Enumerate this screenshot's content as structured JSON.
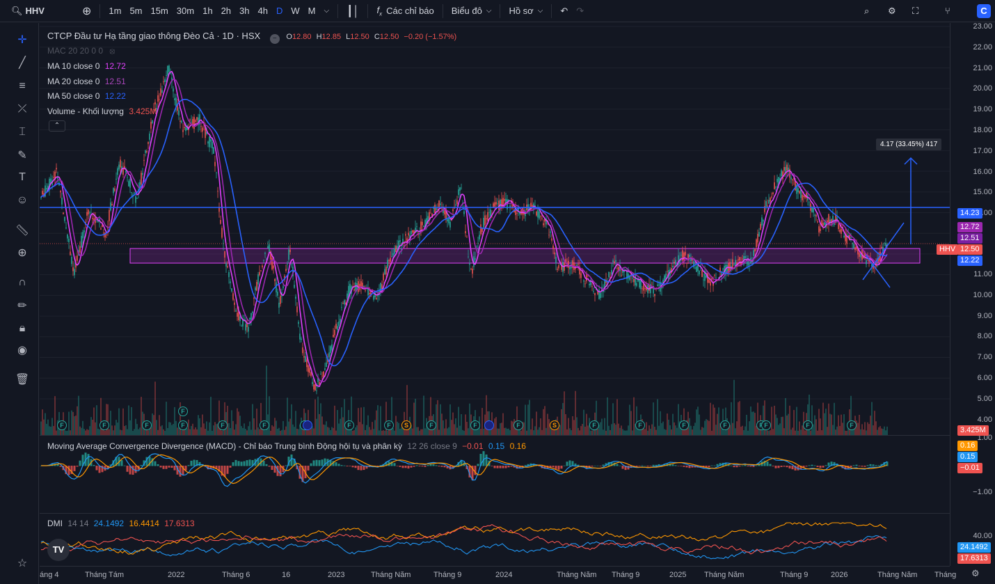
{
  "topbar": {
    "symbol": "HHV",
    "intervals": [
      "1m",
      "5m",
      "15m",
      "30m",
      "1h",
      "2h",
      "3h",
      "4h",
      "D",
      "W",
      "M"
    ],
    "active_interval": "D",
    "indicators_label": "Các chỉ báo",
    "chart_type_label": "Biểu đô",
    "profile_label": "Hồ sơ"
  },
  "legend": {
    "title": "CTCP Đầu tư Hạ tầng giao thông Đèo Cả · 1D · HSX",
    "ohlc": {
      "o_label": "O",
      "o": "12.80",
      "h_label": "H",
      "h": "12.85",
      "l_label": "L",
      "l": "12.50",
      "c_label": "C",
      "c": "12.50",
      "chg": "−0.20 (−1.57%)"
    },
    "mac": "MAC 20 20 0 0",
    "ma10_label": "MA 10 close 0",
    "ma10": "12.72",
    "ma20_label": "MA 20 close 0",
    "ma20": "12.51",
    "ma50_label": "MA 50 close 0",
    "ma50": "12.22",
    "volume_label": "Volume - Khối lượng",
    "volume": "3.425M"
  },
  "macd": {
    "label": "Moving Average Convergence Divergence (MACD) - Chỉ báo Trung bình Động hội tụ và phân kỳ",
    "params": "12 26 close 9",
    "v1": "−0.01",
    "v2": "0.15",
    "v3": "0.16"
  },
  "dmi": {
    "label": "DMI",
    "params": "14 14",
    "v1": "24.1492",
    "v2": "16.4414",
    "v3": "17.6313"
  },
  "price_axis": [
    "23.00",
    "22.00",
    "21.00",
    "20.00",
    "19.00",
    "18.00",
    "17.00",
    "16.00",
    "15.00",
    "14.00",
    "11.00",
    "10.00",
    "9.00",
    "8.00",
    "7.00",
    "6.00",
    "5.00",
    "4.00",
    "1.00"
  ],
  "price_badges": {
    "level": "14.23",
    "ma10": "12.72",
    "ma20": "12.51",
    "symbol": "HHV",
    "close": "12.50",
    "ma50": "12.22",
    "volume": "3.425M"
  },
  "macd_axis": {
    "tick": "−1.00",
    "b1": "0.16",
    "b2": "0.15",
    "b3": "−0.01"
  },
  "dmi_axis": {
    "tick": "40.00",
    "b1": "24.1492",
    "b2": "17.6313"
  },
  "measure_label": "4.17 (33.45%) 417",
  "time_axis": [
    "áng 4",
    "Tháng Tám",
    "2022",
    "Tháng 6",
    "16",
    "2023",
    "Tháng Năm",
    "Tháng 9",
    "2024",
    "Tháng Năm",
    "Tháng 9",
    "2025",
    "Tháng Năm",
    "Tháng 9",
    "2026",
    "Tháng Năm",
    "Tháng"
  ],
  "events": [
    "F",
    "F",
    "F",
    "F",
    "F",
    "F",
    "F",
    "F",
    "F",
    "F",
    "S",
    "F",
    "F",
    "F",
    "F",
    "S",
    "F",
    "F",
    "F",
    "F",
    "F",
    "F",
    "F",
    "F"
  ],
  "colors": {
    "up": "#26a69a",
    "down": "#ef5350",
    "ma10": "#e040fb",
    "ma20": "#9c27b0",
    "ma50": "#2962ff",
    "level": "#2962ff"
  },
  "watermark": "TV"
}
